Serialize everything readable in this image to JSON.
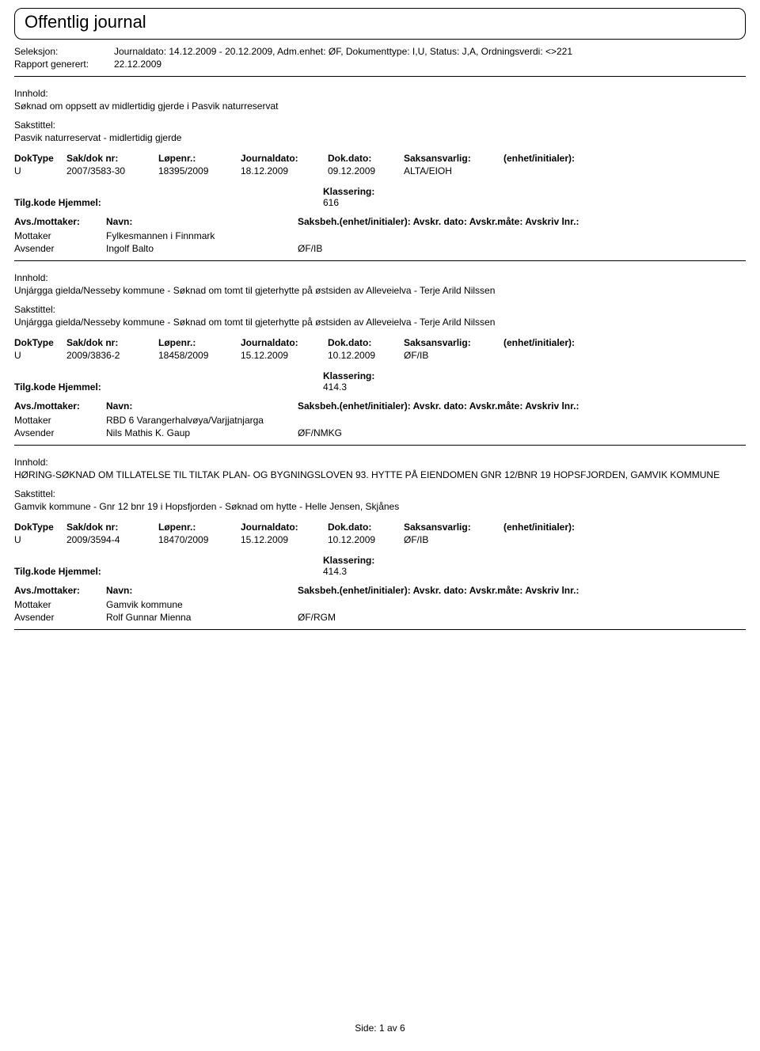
{
  "page_title": "Offentlig journal",
  "filter": {
    "seleksjon_label": "Seleksjon:",
    "seleksjon_value": "Journaldato: 14.12.2009 - 20.12.2009, Adm.enhet: ØF, Dokumenttype: I,U, Status: J,A, Ordningsverdi: <>221",
    "rapport_label": "Rapport generert:",
    "rapport_value": "22.12.2009"
  },
  "labels": {
    "innhold": "Innhold:",
    "sakstittel": "Sakstittel:",
    "doktype": "DokType",
    "sakdok": "Sak/dok nr:",
    "lopenr": "Løpenr.:",
    "journaldato": "Journaldato:",
    "dokdato": "Dok.dato:",
    "saksansvarlig": "Saksansvarlig:",
    "enhetinit": "(enhet/initialer):",
    "tilg": "Tilg.kode Hjemmel:",
    "klassering": "Klassering:",
    "avs_mottaker": "Avs./mottaker:",
    "navn": "Navn:",
    "saksbeh_line": "Saksbeh.(enhet/initialer): Avskr. dato: Avskr.måte: Avskriv lnr.:",
    "mottaker": "Mottaker",
    "avsender": "Avsender"
  },
  "footer": {
    "side_label": "Side:",
    "page": "1",
    "av": "av",
    "total": "6"
  },
  "entries": [
    {
      "innhold": "Søknad om oppsett av midlertidig gjerde i Pasvik naturreservat",
      "sakstittel": "Pasvik naturreservat - midlertidig gjerde",
      "doktype": "U",
      "sakdok": "2007/3583-30",
      "lopenr": "18395/2009",
      "journaldato": "18.12.2009",
      "dokdato": "09.12.2009",
      "saksansvarlig": "ALTA/EIOH",
      "enhetinit": "",
      "klassering": "616",
      "parties": [
        {
          "role": "Mottaker",
          "name": "Fylkesmannen i Finnmark",
          "code": ""
        },
        {
          "role": "Avsender",
          "name": "Ingolf Balto",
          "code": "ØF/IB"
        }
      ]
    },
    {
      "innhold": "Unjárgga gielda/Nesseby kommune - Søknad om tomt til gjeterhytte på østsiden av Alleveielva - Terje  Arild Nilssen",
      "sakstittel": "Unjárgga gielda/Nesseby kommune - Søknad om tomt til gjeterhytte på østsiden av Alleveielva - Terje  Arild Nilssen",
      "doktype": "U",
      "sakdok": "2009/3836-2",
      "lopenr": "18458/2009",
      "journaldato": "15.12.2009",
      "dokdato": "10.12.2009",
      "saksansvarlig": "ØF/IB",
      "enhetinit": "",
      "klassering": "414.3",
      "parties": [
        {
          "role": "Mottaker",
          "name": "RBD 6 Varangerhalvøya/Varjjatnjarga",
          "code": ""
        },
        {
          "role": "Avsender",
          "name": "Nils Mathis K. Gaup",
          "code": "ØF/NMKG"
        }
      ]
    },
    {
      "innhold": "HØRING-SØKNAD OM TILLATELSE TIL TILTAK PLAN- OG BYGNINGSLOVEN 93. HYTTE PÅ EIENDOMEN GNR 12/BNR 19 HOPSFJORDEN, GAMVIK KOMMUNE",
      "sakstittel": "Gamvik kommune - Gnr 12 bnr 19 i Hopsfjorden - Søknad om hytte - Helle Jensen, Skjånes",
      "doktype": "U",
      "sakdok": "2009/3594-4",
      "lopenr": "18470/2009",
      "journaldato": "15.12.2009",
      "dokdato": "10.12.2009",
      "saksansvarlig": "ØF/IB",
      "enhetinit": "",
      "klassering": "414.3",
      "parties": [
        {
          "role": "Mottaker",
          "name": "Gamvik kommune",
          "code": ""
        },
        {
          "role": "Avsender",
          "name": "Rolf Gunnar Mienna",
          "code": "ØF/RGM"
        }
      ]
    }
  ]
}
